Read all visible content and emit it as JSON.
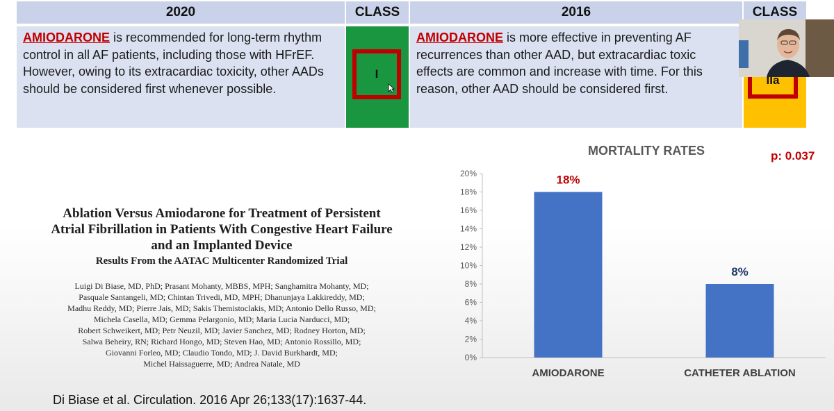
{
  "table": {
    "col_2020": "2020",
    "class_label": "CLASS",
    "col_2016": "2016",
    "rec_2020": {
      "drug": "AMIODARONE",
      "lines": [
        " is recommended for long-term rhythm",
        "control in all AF patients, including those with HFrEF.",
        "However, owing to its extracardiac toxicity, other AADs",
        "should be considered first whenever possible."
      ]
    },
    "class_2020": "I",
    "rec_2016": {
      "drug": "AMIODARONE",
      "lines": [
        " is more effective in preventing AF",
        "recurrences than other AAD, but extracardiac toxic",
        "effects are common and increase with time. For this",
        "reason, other AAD should be considered first."
      ]
    },
    "class_2016": "IIa",
    "colors": {
      "header": "#c9d2e8",
      "body": "#dbe1f1",
      "class_i": "#1a9641",
      "class_iia": "#ffc000",
      "drug": "#c00000"
    }
  },
  "paper": {
    "title_lines": [
      "Ablation Versus Amiodarone for Treatment of Persistent",
      "Atrial Fibrillation in Patients With Congestive Heart Failure",
      "and an Implanted Device"
    ],
    "subtitle": "Results From the AATAC Multicenter Randomized Trial",
    "authors_lines": [
      "Luigi Di Biase, MD, PhD; Prasant Mohanty, MBBS, MPH; Sanghamitra Mohanty, MD;",
      "Pasquale Santangeli, MD; Chintan Trivedi, MD, MPH; Dhanunjaya Lakkireddy, MD;",
      "Madhu Reddy, MD; Pierre Jais, MD; Sakis Themistoclakis, MD; Antonio Dello Russo, MD;",
      "Michela Casella, MD; Gemma Pelargonio, MD; Maria Lucia Narducci, MD;",
      "Robert Schweikert, MD; Petr Neuzil, MD; Javier Sanchez, MD; Rodney Horton, MD;",
      "Salwa Beheiry, RN; Richard Hongo, MD; Steven Hao, MD; Antonio Rossillo, MD;",
      "Giovanni Forleo, MD; Claudio Tondo, MD; J. David Burkhardt, MD;",
      "Michel Haissaguerre, MD; Andrea Natale, MD"
    ],
    "citation": "Di Biase et al. Circulation. 2016 Apr 26;133(17):1637-44."
  },
  "chart_data": {
    "type": "bar",
    "title": "MORTALITY RATES",
    "annotation": "p: 0.037",
    "categories": [
      "AMIODARONE",
      "CATHETER ABLATION"
    ],
    "values": [
      18,
      8
    ],
    "data_labels": [
      "18%",
      "8%"
    ],
    "data_label_colors": [
      "#c00000",
      "#1f3864"
    ],
    "bar_color": "#4472c4",
    "ylim": [
      0,
      20
    ],
    "yticks": [
      "0%",
      "2%",
      "4%",
      "6%",
      "8%",
      "10%",
      "12%",
      "14%",
      "16%",
      "18%",
      "20%"
    ],
    "grid": false,
    "xlabel": "",
    "ylabel": ""
  }
}
